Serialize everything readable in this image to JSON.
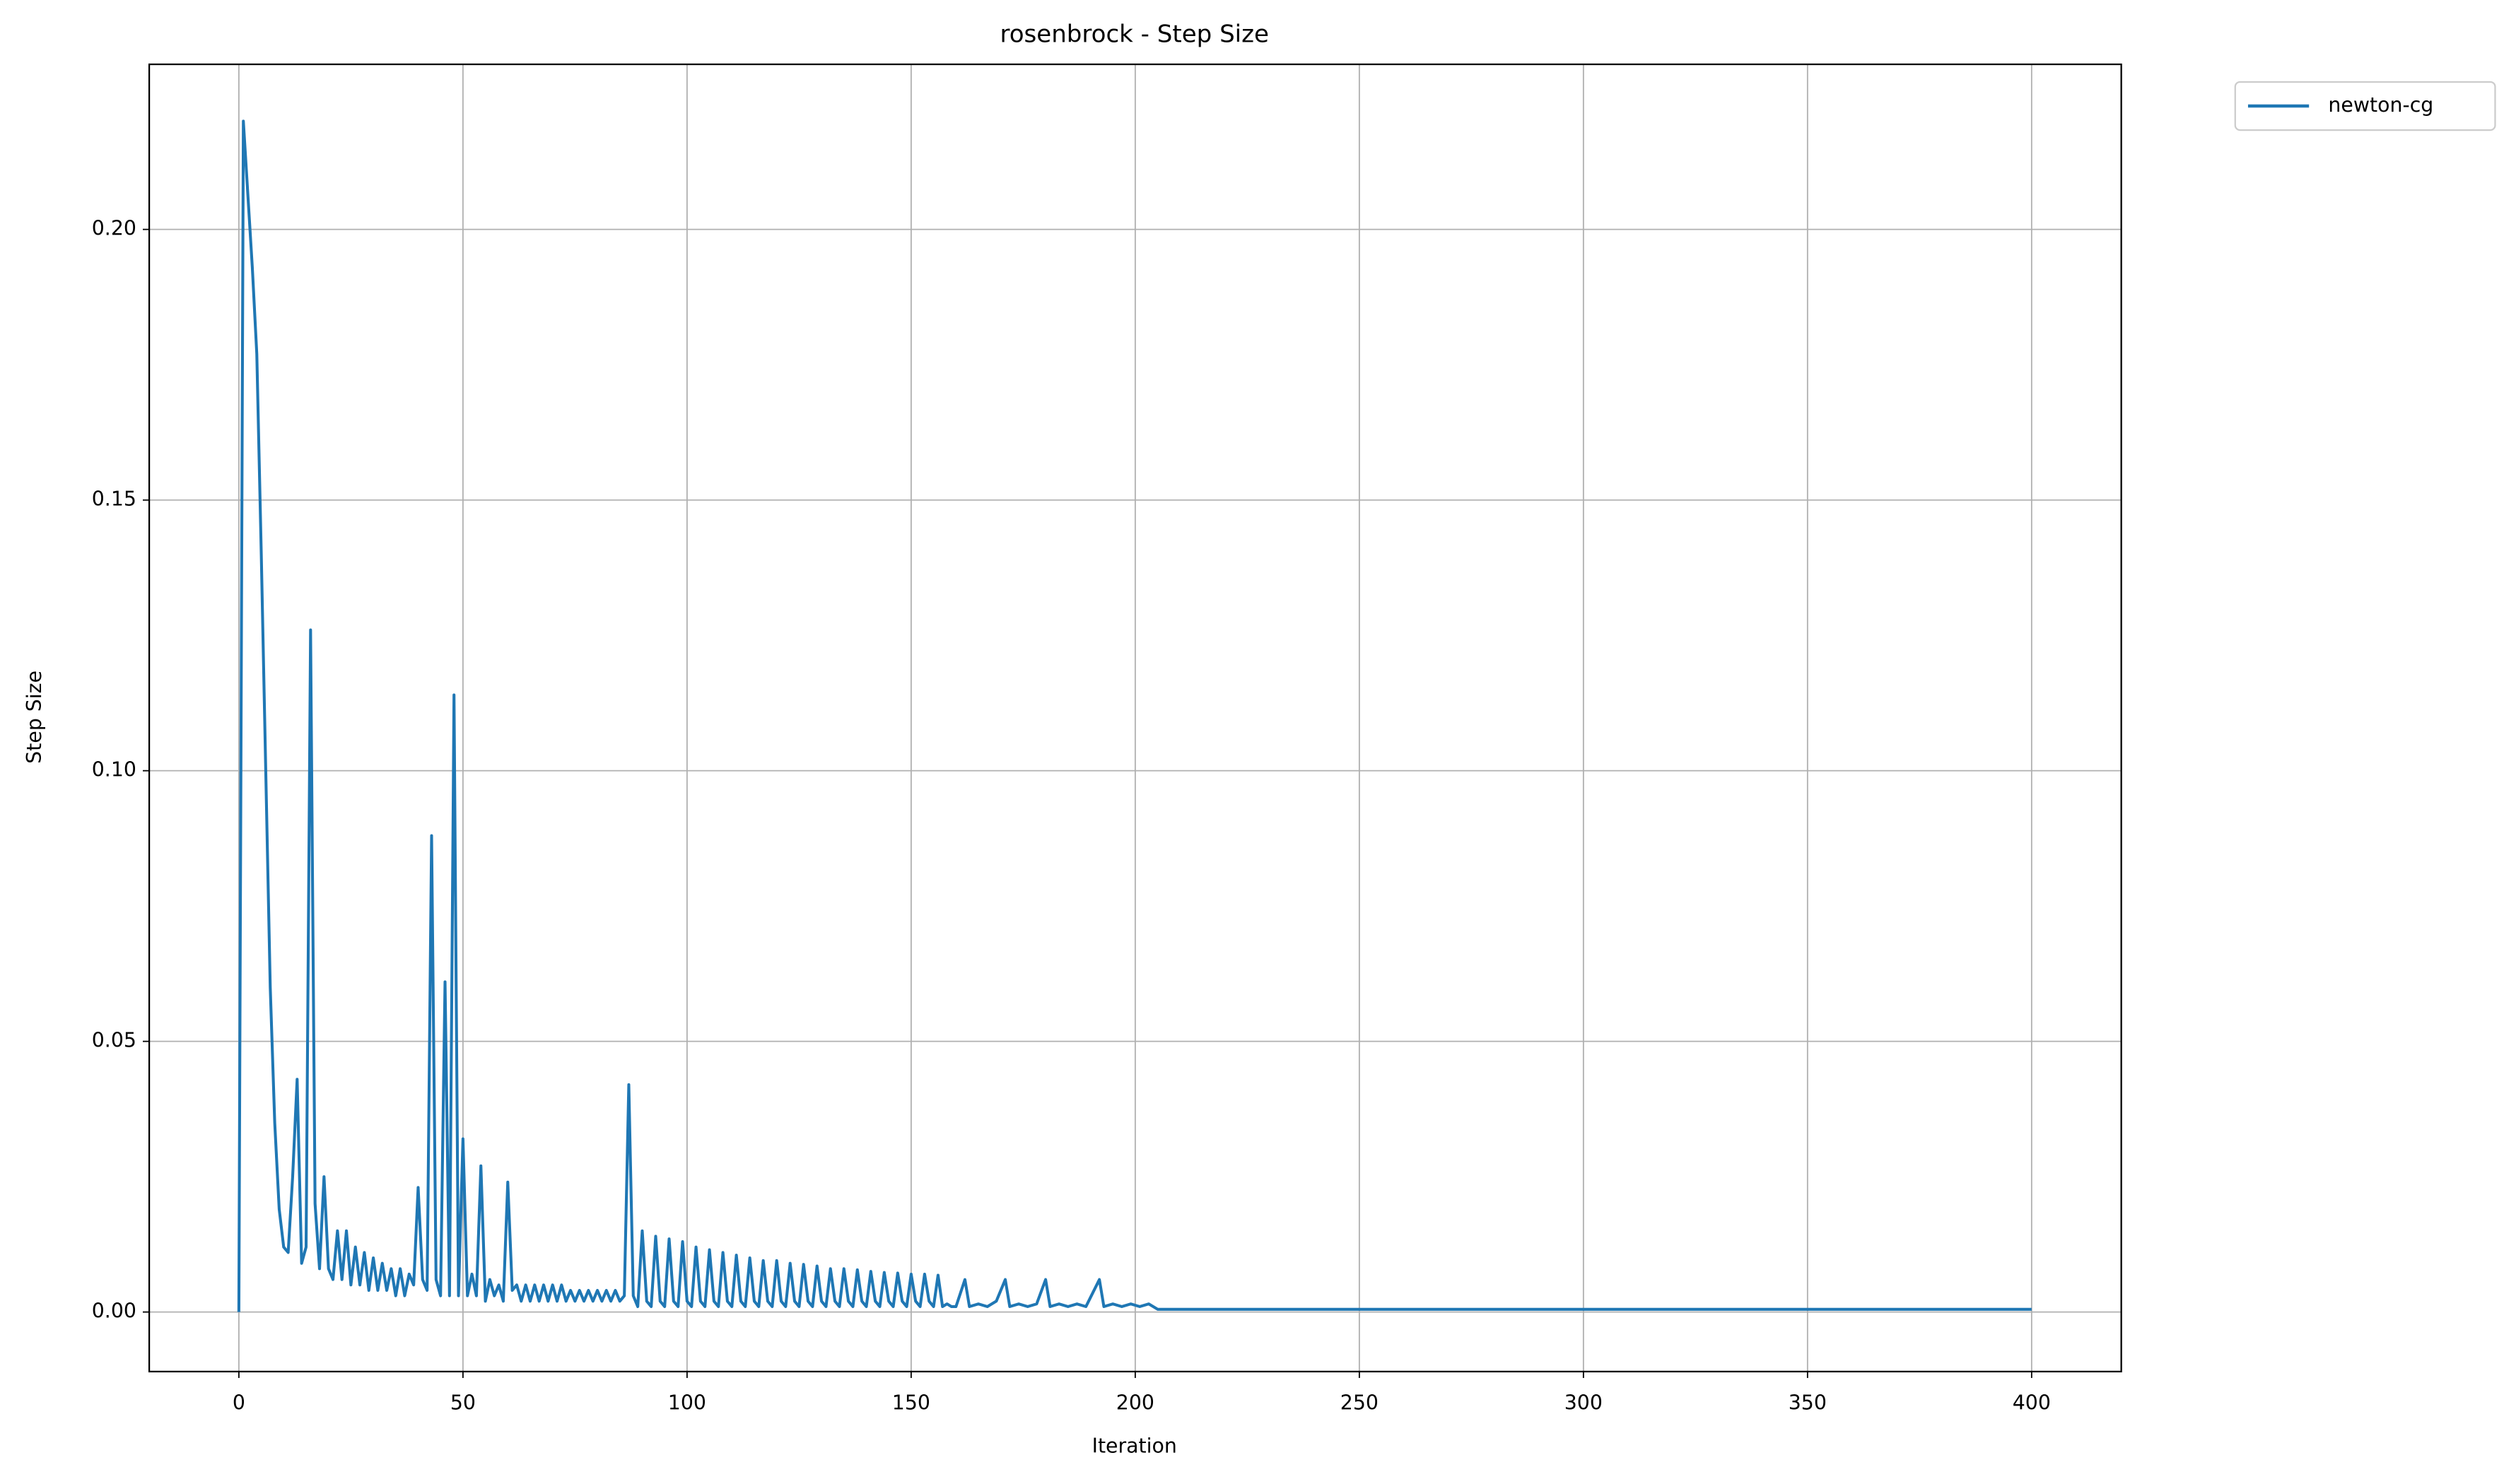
{
  "chart_data": {
    "type": "line",
    "title": "rosenbrock - Step Size",
    "x_label": "Iteration",
    "y_label": "Step Size",
    "xlim": [
      -20,
      420
    ],
    "ylim": [
      -0.011,
      0.2305
    ],
    "xticks": [
      0,
      50,
      100,
      150,
      200,
      250,
      300,
      350,
      400
    ],
    "yticks": [
      {
        "value": 0,
        "label": "0.00"
      },
      {
        "value": 0.05,
        "label": "0.05"
      },
      {
        "value": 0.1,
        "label": "0.10"
      },
      {
        "value": 0.15,
        "label": "0.15"
      },
      {
        "value": 0.2,
        "label": "0.20"
      }
    ],
    "grid": true,
    "legend": "outside upper right",
    "x": [
      0,
      1,
      3,
      4,
      5,
      6,
      7,
      8,
      9,
      10,
      11,
      12,
      13,
      14,
      15,
      16,
      17,
      18,
      19,
      20,
      21,
      22,
      23,
      24,
      25,
      26,
      27,
      28,
      29,
      30,
      31,
      32,
      33,
      34,
      35,
      36,
      37,
      38,
      39,
      40,
      41,
      42,
      43,
      44,
      45,
      46,
      47,
      48,
      49,
      50,
      51,
      52,
      53,
      54,
      55,
      56,
      57,
      58,
      59,
      60,
      61,
      62,
      63,
      64,
      65,
      66,
      67,
      68,
      69,
      70,
      71,
      72,
      73,
      74,
      75,
      76,
      77,
      78,
      79,
      80,
      81,
      82,
      83,
      84,
      85,
      86,
      87,
      88,
      89,
      90,
      91,
      92,
      93,
      94,
      95,
      96,
      97,
      98,
      99,
      100,
      101,
      102,
      103,
      104,
      105,
      106,
      107,
      108,
      109,
      110,
      111,
      112,
      113,
      114,
      115,
      116,
      117,
      118,
      119,
      120,
      121,
      122,
      123,
      124,
      125,
      126,
      127,
      128,
      129,
      130,
      131,
      132,
      133,
      134,
      135,
      136,
      137,
      138,
      139,
      140,
      141,
      142,
      143,
      144,
      145,
      146,
      147,
      148,
      149,
      150,
      151,
      152,
      153,
      154,
      155,
      156,
      157,
      158,
      159,
      160,
      162,
      163,
      165,
      167,
      169,
      171,
      172,
      174,
      176,
      178,
      180,
      181,
      183,
      185,
      187,
      189,
      192,
      193,
      195,
      197,
      199,
      201,
      203,
      205,
      400
    ],
    "series": [
      {
        "name": "newton-cg",
        "color": "#1f77b4",
        "values": [
          0,
          0.22,
          0.193,
          0.177,
          0.14,
          0.1,
          0.06,
          0.035,
          0.019,
          0.012,
          0.011,
          0.025,
          0.043,
          0.009,
          0.012,
          0.126,
          0.02,
          0.008,
          0.025,
          0.008,
          0.006,
          0.015,
          0.006,
          0.015,
          0.005,
          0.012,
          0.005,
          0.011,
          0.004,
          0.01,
          0.004,
          0.009,
          0.004,
          0.008,
          0.003,
          0.008,
          0.003,
          0.007,
          0.005,
          0.023,
          0.006,
          0.004,
          0.088,
          0.006,
          0.003,
          0.061,
          0.003,
          0.114,
          0.003,
          0.032,
          0.003,
          0.007,
          0.003,
          0.027,
          0.002,
          0.006,
          0.003,
          0.005,
          0.002,
          0.024,
          0.004,
          0.005,
          0.002,
          0.005,
          0.002,
          0.005,
          0.002,
          0.005,
          0.002,
          0.005,
          0.002,
          0.005,
          0.002,
          0.004,
          0.002,
          0.004,
          0.002,
          0.004,
          0.002,
          0.004,
          0.002,
          0.004,
          0.002,
          0.004,
          0.002,
          0.003,
          0.042,
          0.003,
          0.001,
          0.015,
          0.002,
          0.001,
          0.014,
          0.002,
          0.001,
          0.0135,
          0.002,
          0.001,
          0.013,
          0.002,
          0.001,
          0.012,
          0.002,
          0.001,
          0.0115,
          0.002,
          0.001,
          0.011,
          0.002,
          0.001,
          0.0105,
          0.002,
          0.001,
          0.01,
          0.002,
          0.001,
          0.0095,
          0.002,
          0.001,
          0.0095,
          0.002,
          0.001,
          0.009,
          0.002,
          0.001,
          0.0088,
          0.002,
          0.001,
          0.0085,
          0.002,
          0.001,
          0.008,
          0.002,
          0.001,
          0.008,
          0.002,
          0.001,
          0.0078,
          0.002,
          0.001,
          0.0075,
          0.002,
          0.001,
          0.0073,
          0.002,
          0.001,
          0.0072,
          0.002,
          0.001,
          0.007,
          0.002,
          0.001,
          0.007,
          0.002,
          0.001,
          0.0068,
          0.001,
          0.0015,
          0.001,
          0.001,
          0.006,
          0.001,
          0.0015,
          0.001,
          0.002,
          0.006,
          0.001,
          0.0015,
          0.001,
          0.0015,
          0.006,
          0.001,
          0.0015,
          0.001,
          0.0015,
          0.001,
          0.006,
          0.001,
          0.0015,
          0.001,
          0.0015,
          0.001,
          0.0015,
          0.0005,
          0.0005
        ]
      }
    ]
  }
}
